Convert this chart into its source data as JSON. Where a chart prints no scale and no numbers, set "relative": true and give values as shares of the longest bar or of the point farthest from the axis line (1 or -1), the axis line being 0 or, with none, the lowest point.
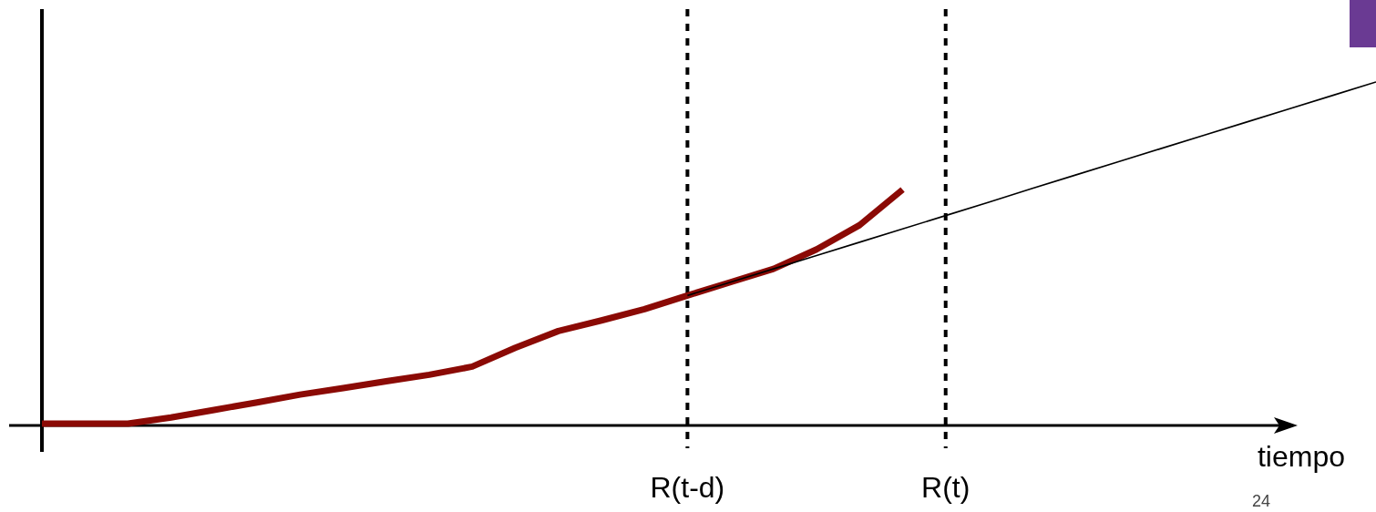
{
  "chart_data": {
    "type": "line",
    "relative": true,
    "xlabel": "tiempo",
    "marker": "none",
    "line_style": "solid",
    "categories": [
      null,
      null,
      null,
      null,
      null,
      null,
      null,
      null,
      null,
      null,
      null,
      null,
      null,
      null,
      null,
      "R(t-d)",
      null,
      null,
      null,
      null,
      null,
      "R(t)",
      null,
      null,
      null,
      null,
      null,
      null,
      null,
      null,
      null,
      null
    ],
    "series": [
      {
        "color": "#8b0a05",
        "values": [
          0,
          0,
          0,
          0.018,
          0.04,
          0.062,
          0.085,
          0.104,
          0.124,
          0.143,
          0.167,
          0.222,
          0.271,
          0.302,
          0.335,
          0.375,
          0.414,
          0.453,
          0.51,
          0.581,
          0.685,
          null,
          null,
          null,
          null,
          null,
          null,
          null,
          null,
          null,
          null,
          null
        ]
      },
      {
        "color": "#000000",
        "values": [
          null,
          null,
          null,
          null,
          null,
          null,
          null,
          null,
          null,
          null,
          null,
          null,
          null,
          null,
          null,
          0.375,
          0.414,
          0.453,
          0.492,
          0.531,
          0.57,
          0.609,
          0.648,
          0.688,
          0.727,
          0.766,
          0.805,
          0.844,
          0.883,
          0.922,
          0.961,
          1
        ]
      }
    ],
    "ref_lines": [
      {
        "axis": "x",
        "value": "R(t-d)",
        "color": "#000000",
        "line_style": "dashed"
      },
      {
        "axis": "x",
        "value": "R(t)",
        "color": "#000000",
        "line_style": "dashed"
      }
    ],
    "annotations": [
      "24"
    ]
  }
}
